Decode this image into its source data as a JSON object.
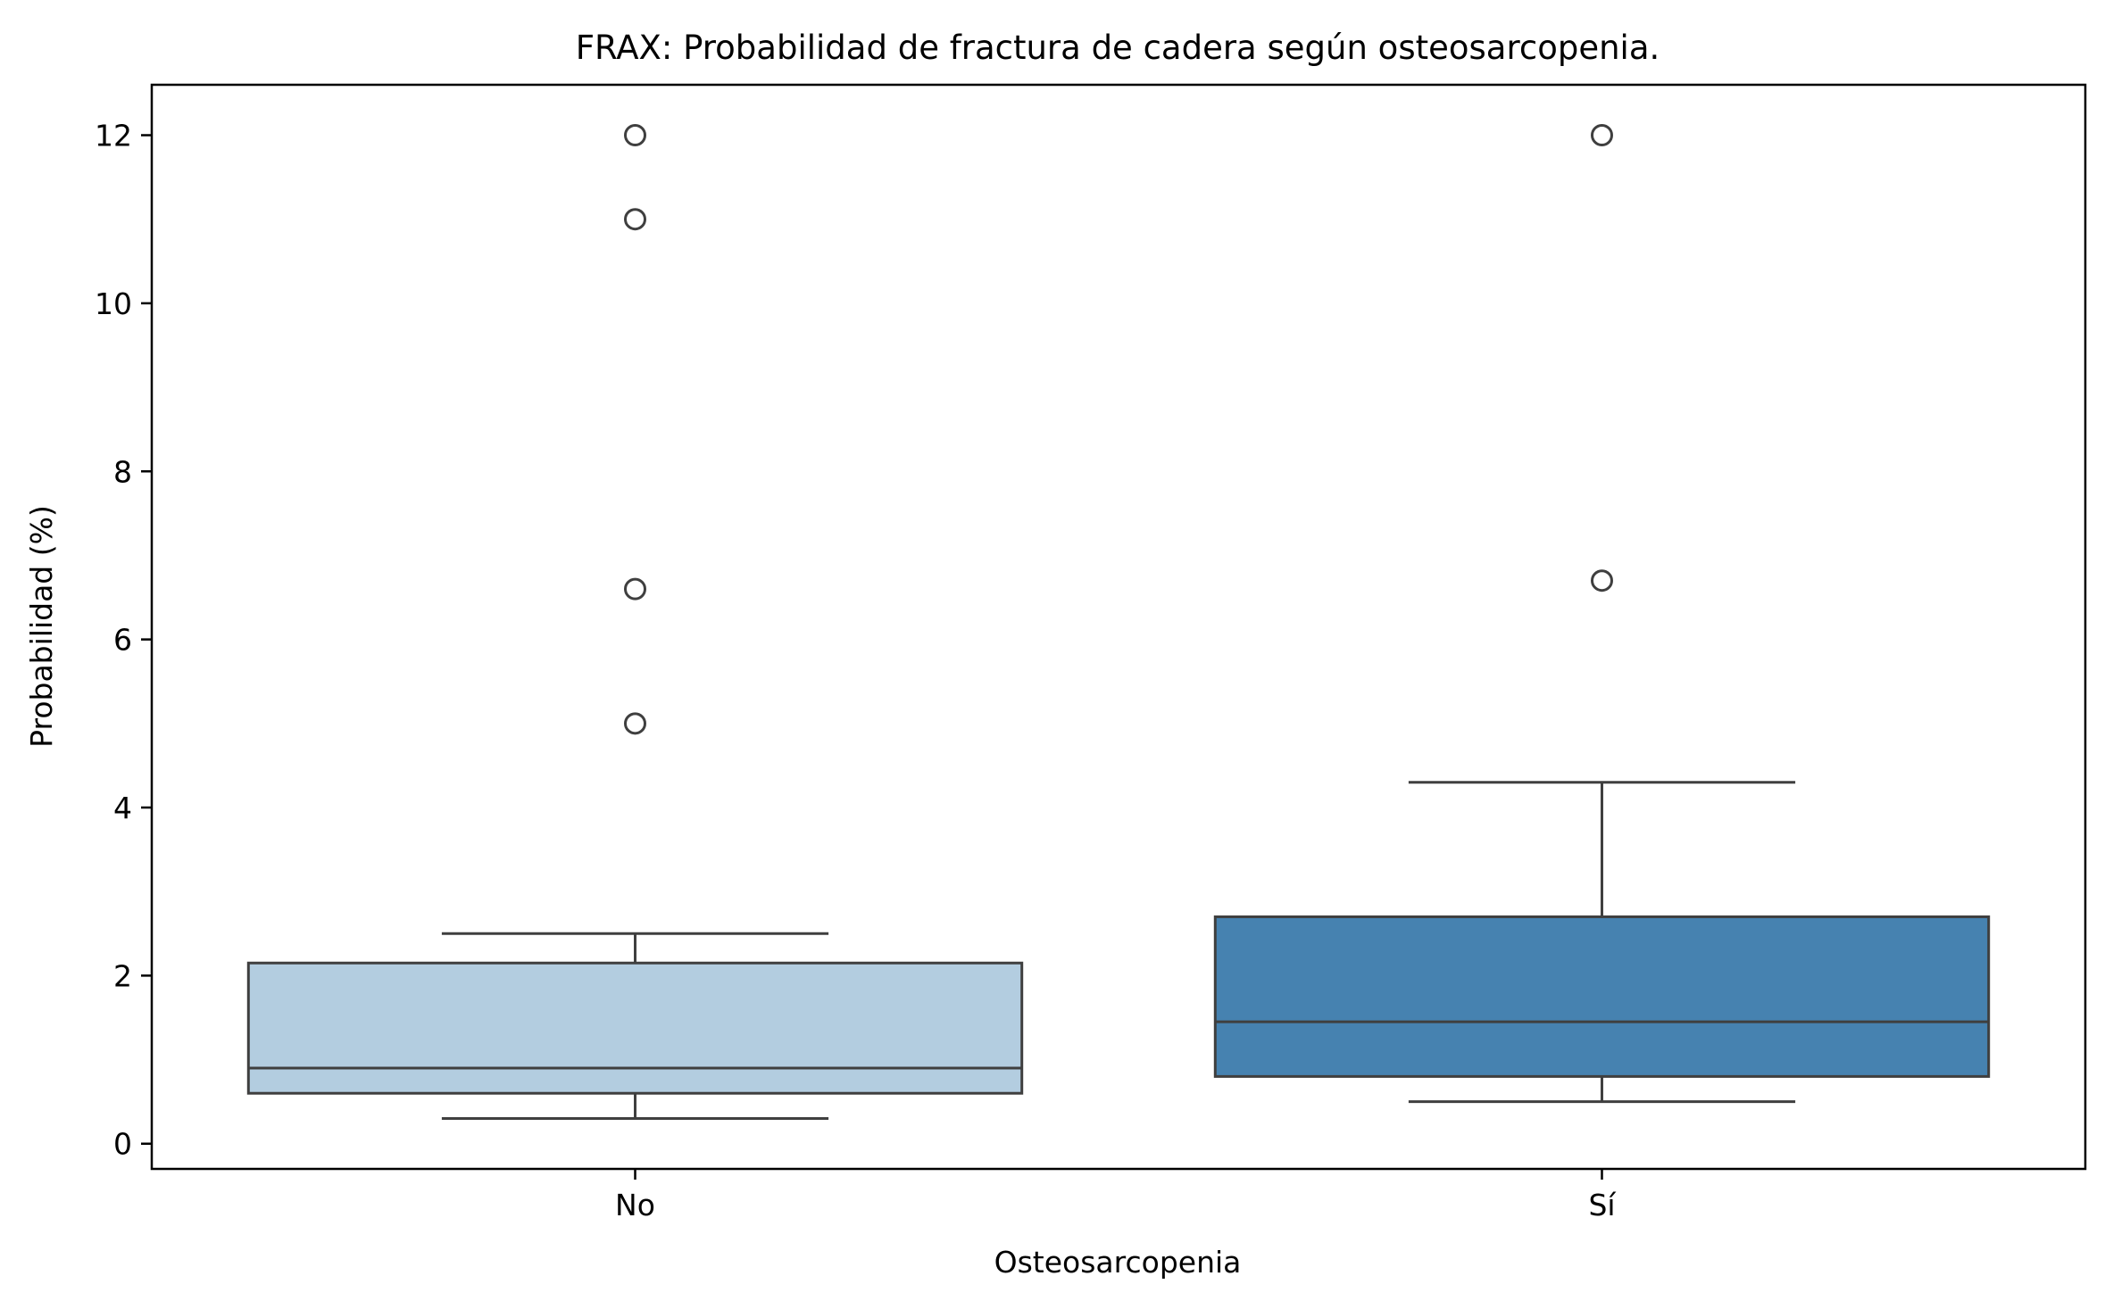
{
  "chart_data": {
    "type": "box",
    "title": "FRAX: Probabilidad de fractura de cadera según osteosarcopenia.",
    "xlabel": "Osteosarcopenia",
    "ylabel": "Probabilidad (%)",
    "ylim": [
      -0.3,
      12.6
    ],
    "yticks": [
      0,
      2,
      4,
      6,
      8,
      10,
      12
    ],
    "categories": [
      "No",
      "Sí"
    ],
    "boxes": [
      {
        "category": "No",
        "whisker_low": 0.3,
        "q1": 0.6,
        "median": 0.9,
        "q3": 2.15,
        "whisker_high": 2.5,
        "outliers": [
          5.0,
          6.6,
          11.0,
          12.0
        ],
        "color": "#b3cde0"
      },
      {
        "category": "Sí",
        "whisker_low": 0.5,
        "q1": 0.8,
        "median": 1.45,
        "q3": 2.7,
        "whisker_high": 4.3,
        "outliers": [
          6.7,
          12.0
        ],
        "color": "#4682b0"
      }
    ],
    "grid": false,
    "legend": "none"
  }
}
